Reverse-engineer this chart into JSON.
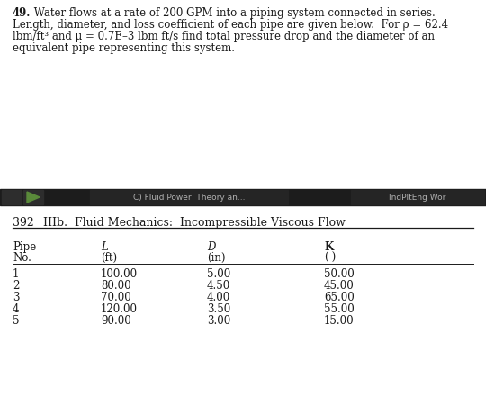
{
  "problem_number": "49.",
  "problem_text_line1": " Water flows at a rate of 200 GPM into a piping system connected in series.",
  "problem_text_line2": "Length, diameter, and loss coefficient of each pipe are given below.  For ρ = 62.4",
  "problem_text_line3": "lbm/ft³ and μ = 0.7E–3 lbm ft/s find total pressure drop and the diameter of an",
  "problem_text_line4": "equivalent pipe representing this system.",
  "taskbar_text_center": "C) Fluid Power  Theory an...",
  "taskbar_text_right": "IndPltEng Wor",
  "page_number": "392",
  "chapter_title": "IIIb.  Fluid Mechanics:  Incompressible Viscous Flow",
  "pipe_nos": [
    "1",
    "2",
    "3",
    "4",
    "5"
  ],
  "L_values": [
    "100.00",
    "80.00",
    "70.00",
    "120.00",
    "90.00"
  ],
  "D_values": [
    "5.00",
    "4.50",
    "4.00",
    "3.50",
    "3.00"
  ],
  "K_values": [
    "50.00",
    "45.00",
    "65.00",
    "55.00",
    "15.00"
  ],
  "page_bg": "#ffffff",
  "taskbar_bg": "#1c1c1c",
  "taskbar_text_color": "#b0b0b0",
  "text_color": "#1a1a1a",
  "problem_fontsize": 8.5,
  "table_fontsize": 8.5,
  "chapter_fontsize": 9.0,
  "page_num_fontsize": 9.0
}
